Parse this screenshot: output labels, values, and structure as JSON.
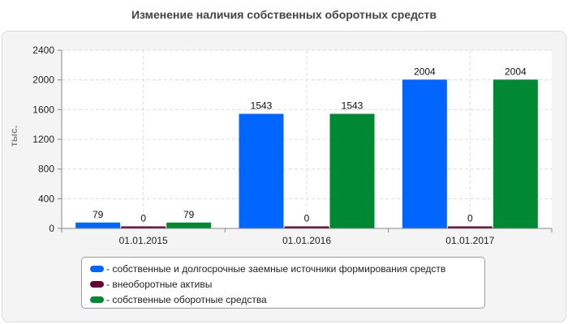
{
  "chart_data": {
    "type": "bar",
    "title": "Изменение наличия собственных оборотных средств",
    "ylabel": "тыс.",
    "xlabel": "",
    "categories": [
      "01.01.2015",
      "01.01.2016",
      "01.01.2017"
    ],
    "ylim": [
      0,
      2400
    ],
    "yticks": [
      0,
      400,
      800,
      1200,
      1600,
      2000,
      2400
    ],
    "grid": true,
    "legend_position": "bottom",
    "series": [
      {
        "name": "- собственные и долгосрочные заемные источники формирования средств",
        "values": [
          79,
          1543,
          2004
        ],
        "labels": [
          "79",
          "1543",
          "2004"
        ],
        "color": "#0066ff"
      },
      {
        "name": "- внеоборотные активы",
        "values": [
          0,
          0,
          0
        ],
        "labels": [
          "0",
          "0",
          "0"
        ],
        "color": "#660033"
      },
      {
        "name": "- собственные оборотные средства",
        "values": [
          79,
          1543,
          2004
        ],
        "labels": [
          "79",
          "1543",
          "2004"
        ],
        "color": "#008833"
      }
    ]
  }
}
